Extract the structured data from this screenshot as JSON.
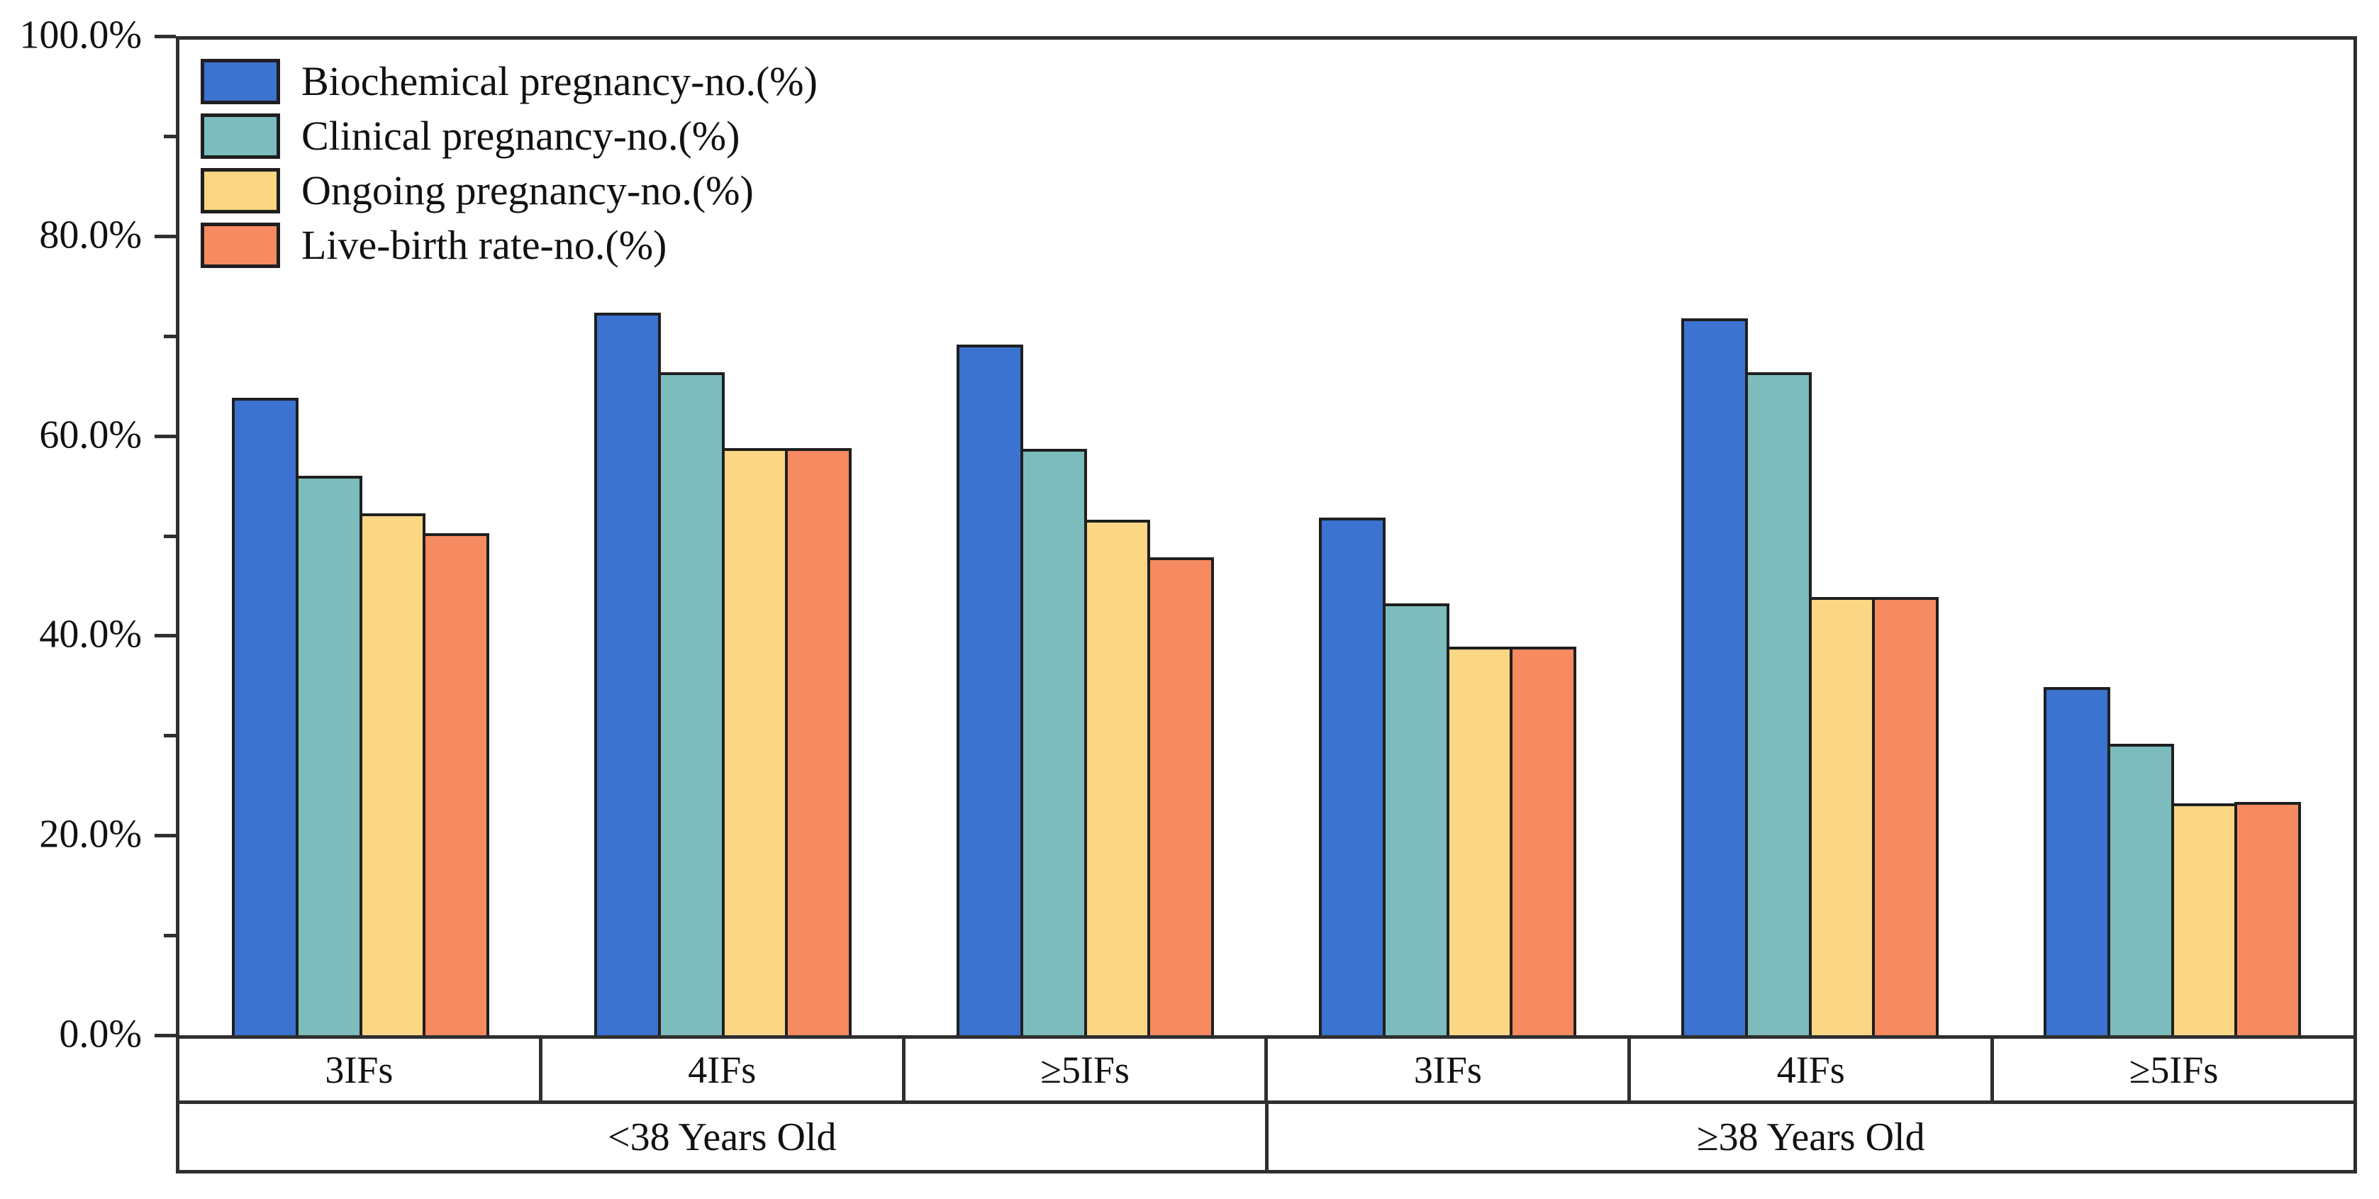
{
  "chart_data": {
    "type": "bar",
    "title": "",
    "xlabel": "",
    "ylabel": "",
    "ylim": [
      0,
      100
    ],
    "grid": false,
    "legend_position": "top-left",
    "axis_color": "#2f2f2f",
    "bar_edge_color": "#1f1f1f",
    "y_axis": {
      "major_ticks": [
        {
          "value": 0,
          "label": "0.0%"
        },
        {
          "value": 20,
          "label": "20.0%"
        },
        {
          "value": 40,
          "label": "40.0%"
        },
        {
          "value": 60,
          "label": "60.0%"
        },
        {
          "value": 80,
          "label": "80.0%"
        },
        {
          "value": 100,
          "label": "100.0%"
        }
      ],
      "minor_ticks": [
        10,
        30,
        50,
        70,
        90
      ]
    },
    "categories": [
      "3IFs",
      "4IFs",
      "≥5IFs",
      "3IFs",
      "4IFs",
      "≥5IFs"
    ],
    "category_groups": [
      {
        "label": "<38 Years Old",
        "span": 3
      },
      {
        "label": "≥38 Years Old",
        "span": 3
      }
    ],
    "series": [
      {
        "name": "Biochemical pregnancy-no.(%)",
        "color": "#3C72D0",
        "values": [
          64.0,
          72.6,
          69.4,
          52.0,
          72.0,
          35.0
        ]
      },
      {
        "name": "Clinical pregnancy-no.(%)",
        "color": "#7CBCBC",
        "values": [
          56.2,
          66.6,
          58.9,
          43.4,
          66.6,
          29.3
        ]
      },
      {
        "name": "Ongoing pregnancy-no.(%)",
        "color": "#FAD685",
        "values": [
          52.4,
          59.0,
          51.8,
          39.0,
          44.0,
          23.3
        ]
      },
      {
        "name": "Live-birth rate-no.(%)",
        "color": "#F68A60",
        "values": [
          50.4,
          59.0,
          48.0,
          39.0,
          44.0,
          23.4
        ]
      }
    ]
  }
}
